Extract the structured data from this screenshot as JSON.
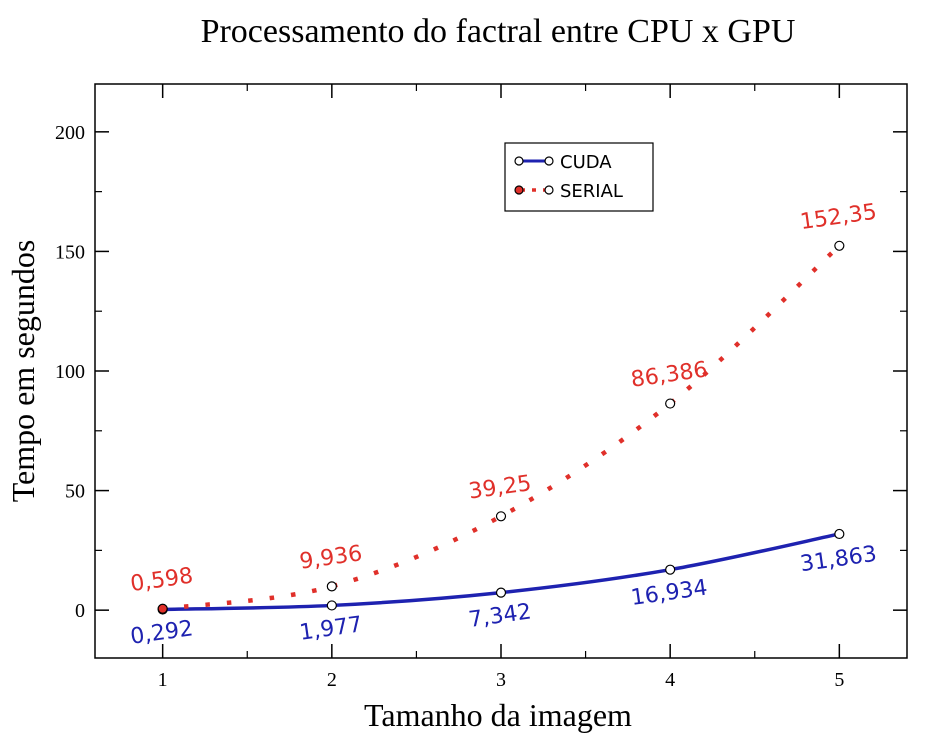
{
  "chart_data": {
    "type": "line",
    "title": "Processamento do factral entre CPU x GPU",
    "xlabel": "Tamanho da imagem",
    "ylabel": "Tempo em segundos",
    "x": [
      1,
      2,
      3,
      4,
      5
    ],
    "x_ticks": [
      "1",
      "2",
      "3",
      "4",
      "5"
    ],
    "y_ticks": [
      "0",
      "50",
      "100",
      "150",
      "200"
    ],
    "y_tick_values": [
      0,
      50,
      100,
      150,
      200
    ],
    "xlim": [
      0.6,
      5.4
    ],
    "ylim": [
      -20,
      220
    ],
    "grid": false,
    "legend_position": "top-center",
    "series": [
      {
        "name": "CUDA",
        "values": [
          0.292,
          1.977,
          7.342,
          16.934,
          31.863
        ],
        "labels": [
          "0,292",
          "1,977",
          "7,342",
          "16,934",
          "31,863"
        ],
        "color": "#1e22b0",
        "style": "solid"
      },
      {
        "name": "SERIAL",
        "values": [
          0.598,
          9.936,
          39.25,
          86.386,
          152.35
        ],
        "labels": [
          "0,598",
          "9,936",
          "39,25",
          "86,386",
          "152,35"
        ],
        "color": "#e0302a",
        "style": "dotted"
      }
    ]
  }
}
